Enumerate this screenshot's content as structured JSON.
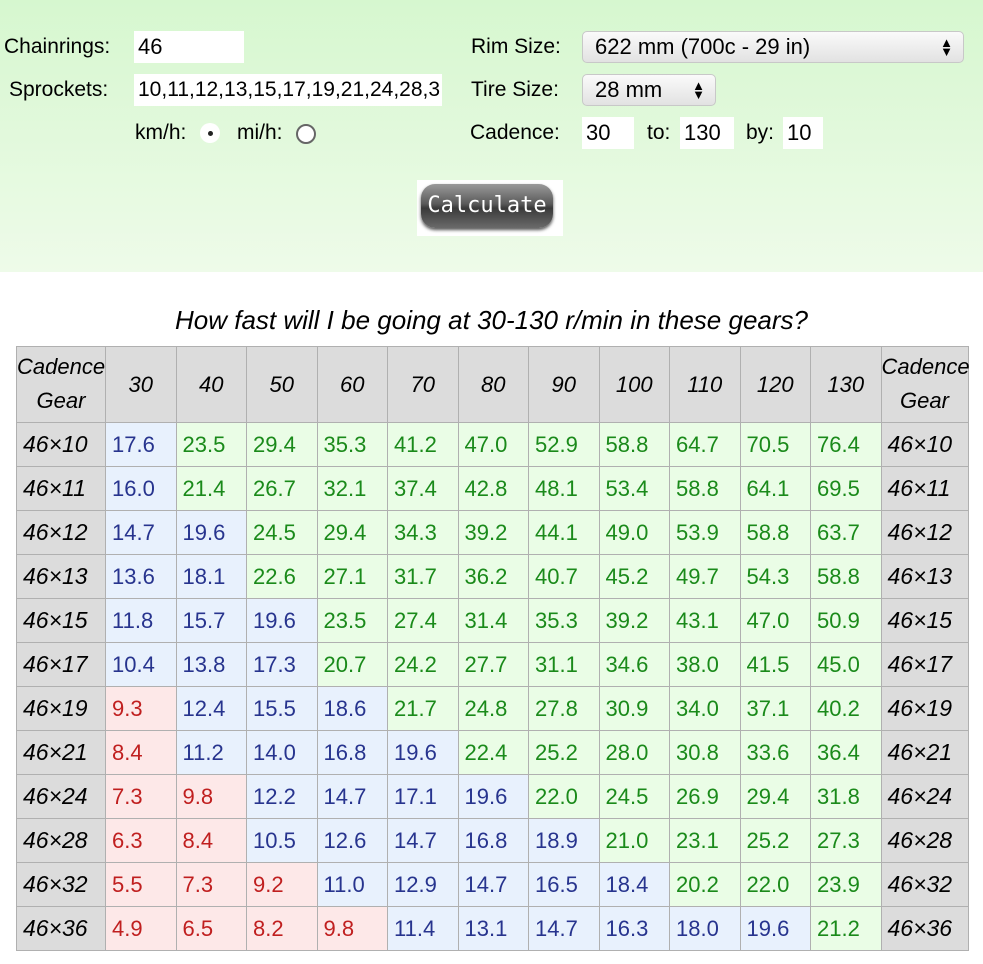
{
  "form": {
    "chainrings_label": "Chainrings:",
    "chainrings_value": "46",
    "sprockets_label": "Sprockets:",
    "sprockets_value": "10,11,12,13,15,17,19,21,24,28,3",
    "kmh_label": "km/h:",
    "mih_label": "mi/h:",
    "rim_label": "Rim Size:",
    "rim_value": "622 mm (700c - 29 in)",
    "tire_label": "Tire Size:",
    "tire_value": "28 mm",
    "cadence_label": "Cadence:",
    "cadence_from": "30",
    "to_label": "to:",
    "cadence_to": "130",
    "by_label": "by:",
    "cadence_by": "10",
    "calculate_label": "Calculate",
    "select_arrows_up": "▲",
    "select_arrows_down": "▼"
  },
  "title": "How fast will I be going at 30-130 r/min in these gears?",
  "table": {
    "corner_top": "Cadence",
    "corner_bottom": "Gear",
    "cadences": [
      "30",
      "40",
      "50",
      "60",
      "70",
      "80",
      "90",
      "100",
      "110",
      "120",
      "130"
    ],
    "rows": [
      {
        "gear": "46×10",
        "values": [
          "17.6",
          "23.5",
          "29.4",
          "35.3",
          "41.2",
          "47.0",
          "52.9",
          "58.8",
          "64.7",
          "70.5",
          "76.4"
        ]
      },
      {
        "gear": "46×11",
        "values": [
          "16.0",
          "21.4",
          "26.7",
          "32.1",
          "37.4",
          "42.8",
          "48.1",
          "53.4",
          "58.8",
          "64.1",
          "69.5"
        ]
      },
      {
        "gear": "46×12",
        "values": [
          "14.7",
          "19.6",
          "24.5",
          "29.4",
          "34.3",
          "39.2",
          "44.1",
          "49.0",
          "53.9",
          "58.8",
          "63.7"
        ]
      },
      {
        "gear": "46×13",
        "values": [
          "13.6",
          "18.1",
          "22.6",
          "27.1",
          "31.7",
          "36.2",
          "40.7",
          "45.2",
          "49.7",
          "54.3",
          "58.8"
        ]
      },
      {
        "gear": "46×15",
        "values": [
          "11.8",
          "15.7",
          "19.6",
          "23.5",
          "27.4",
          "31.4",
          "35.3",
          "39.2",
          "43.1",
          "47.0",
          "50.9"
        ]
      },
      {
        "gear": "46×17",
        "values": [
          "10.4",
          "13.8",
          "17.3",
          "20.7",
          "24.2",
          "27.7",
          "31.1",
          "34.6",
          "38.0",
          "41.5",
          "45.0"
        ]
      },
      {
        "gear": "46×19",
        "values": [
          "9.3",
          "12.4",
          "15.5",
          "18.6",
          "21.7",
          "24.8",
          "27.8",
          "30.9",
          "34.0",
          "37.1",
          "40.2"
        ]
      },
      {
        "gear": "46×21",
        "values": [
          "8.4",
          "11.2",
          "14.0",
          "16.8",
          "19.6",
          "22.4",
          "25.2",
          "28.0",
          "30.8",
          "33.6",
          "36.4"
        ]
      },
      {
        "gear": "46×24",
        "values": [
          "7.3",
          "9.8",
          "12.2",
          "14.7",
          "17.1",
          "19.6",
          "22.0",
          "24.5",
          "26.9",
          "29.4",
          "31.8"
        ]
      },
      {
        "gear": "46×28",
        "values": [
          "6.3",
          "8.4",
          "10.5",
          "12.6",
          "14.7",
          "16.8",
          "18.9",
          "21.0",
          "23.1",
          "25.2",
          "27.3"
        ]
      },
      {
        "gear": "46×32",
        "values": [
          "5.5",
          "7.3",
          "9.2",
          "11.0",
          "12.9",
          "14.7",
          "16.5",
          "18.4",
          "20.2",
          "22.0",
          "23.9"
        ]
      },
      {
        "gear": "46×36",
        "values": [
          "4.9",
          "6.5",
          "8.2",
          "9.8",
          "11.4",
          "13.1",
          "14.7",
          "16.3",
          "18.0",
          "19.6",
          "21.2"
        ]
      }
    ]
  }
}
